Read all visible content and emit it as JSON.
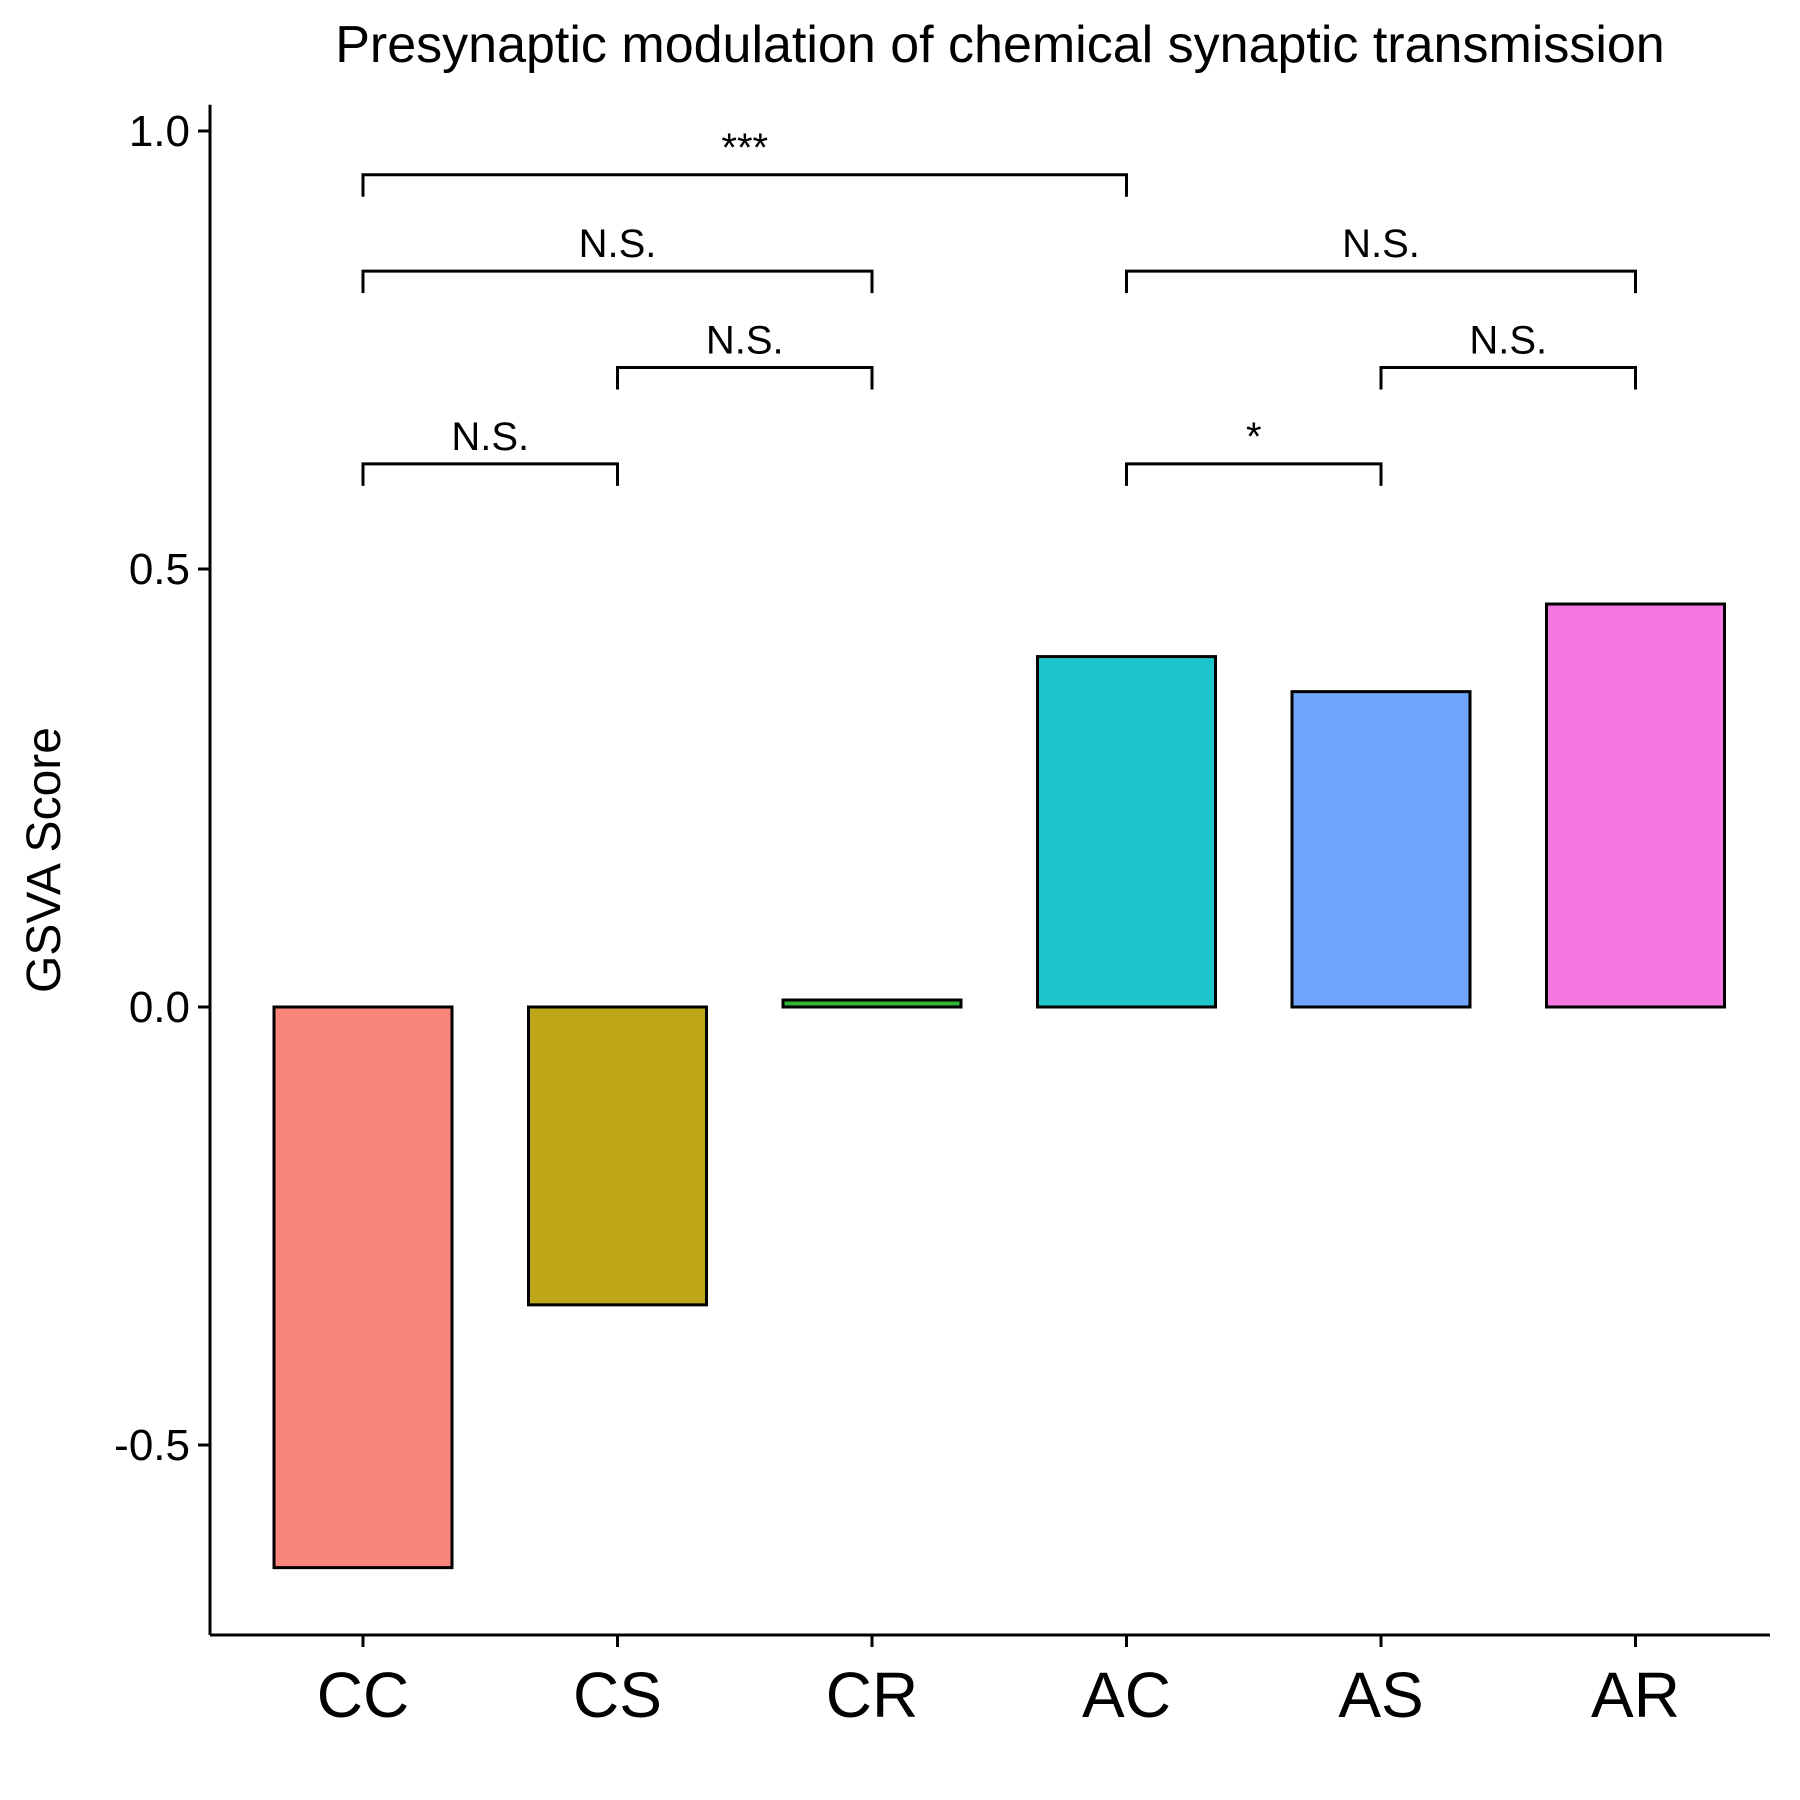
{
  "chart_data": {
    "type": "bar",
    "title": "Presynaptic modulation of chemical synaptic transmission",
    "xlabel": "",
    "ylabel": "GSVA Score",
    "categories": [
      "CC",
      "CS",
      "CR",
      "AC",
      "AS",
      "AR"
    ],
    "values": [
      -0.64,
      -0.34,
      0.008,
      0.4,
      0.36,
      0.46
    ],
    "colors": [
      "#F8847C",
      "#BDA718",
      "#32B535",
      "#1CC4CB",
      "#70A5FB",
      "#F577E2"
    ],
    "ylim": [
      -0.72,
      1.03
    ],
    "yticks": [
      -0.5,
      0.0,
      0.5,
      1.0
    ],
    "ytick_labels": [
      "-0.5",
      "0.0",
      "0.5",
      "1.0"
    ],
    "grid": false,
    "legend": "none",
    "significance": [
      {
        "from": "CC",
        "to": "AC",
        "label": "***",
        "y": 0.95
      },
      {
        "from": "CC",
        "to": "CR",
        "label": "N.S.",
        "y": 0.84
      },
      {
        "from": "AC",
        "to": "AR",
        "label": "N.S.",
        "y": 0.84
      },
      {
        "from": "CS",
        "to": "CR",
        "label": "N.S.",
        "y": 0.73
      },
      {
        "from": "AS",
        "to": "AR",
        "label": "N.S.",
        "y": 0.73
      },
      {
        "from": "CC",
        "to": "CS",
        "label": "N.S.",
        "y": 0.62
      },
      {
        "from": "AC",
        "to": "AS",
        "label": "*",
        "y": 0.62
      }
    ]
  }
}
